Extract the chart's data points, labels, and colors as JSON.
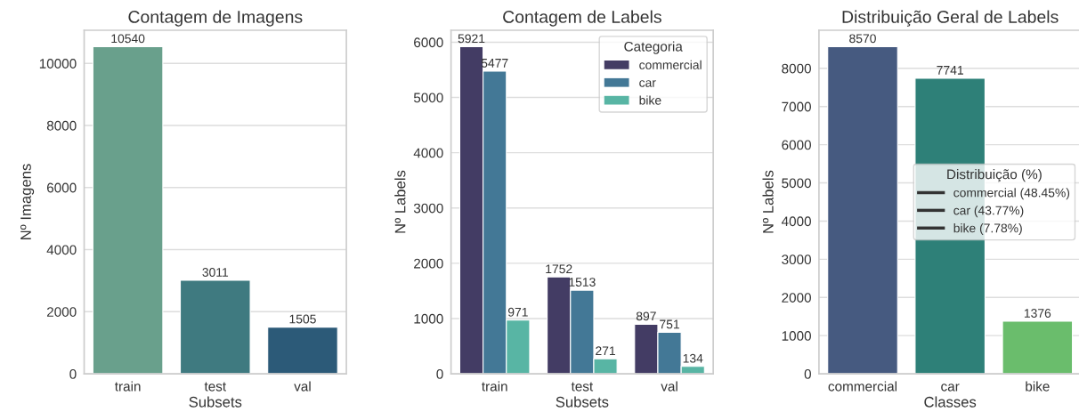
{
  "chart_data": [
    {
      "type": "bar",
      "title": "Contagem de Imagens",
      "xlabel": "Subsets",
      "ylabel": "Nº Imagens",
      "categories": [
        "train",
        "test",
        "val"
      ],
      "values": [
        10540,
        3011,
        1505
      ],
      "colors": [
        "#69a08c",
        "#3f7a80",
        "#2c5a78"
      ],
      "ylim": [
        0,
        11067
      ],
      "yticks": [
        0,
        2000,
        4000,
        6000,
        8000,
        10000
      ],
      "grid": "y",
      "data_labels": true
    },
    {
      "type": "bar",
      "title": "Contagem de Labels",
      "xlabel": "Subsets",
      "ylabel": "Nº Labels",
      "categories": [
        "train",
        "test",
        "val"
      ],
      "legend_title": "Categoria",
      "legend": "top right",
      "series": [
        {
          "name": "commercial",
          "color": "#433c64",
          "values": [
            5921,
            1752,
            897
          ]
        },
        {
          "name": "car",
          "color": "#437896",
          "values": [
            5477,
            1513,
            751
          ]
        },
        {
          "name": "bike",
          "color": "#58b5a4",
          "values": [
            971,
            271,
            134
          ]
        }
      ],
      "ylim": [
        0,
        6217
      ],
      "yticks": [
        0,
        1000,
        2000,
        3000,
        4000,
        5000,
        6000
      ],
      "grid": "y",
      "data_labels": true
    },
    {
      "type": "bar",
      "title": "Distribuição Geral de Labels",
      "xlabel": "Classes",
      "ylabel": "Nº Labels",
      "categories": [
        "commercial",
        "car",
        "bike"
      ],
      "values": [
        8570,
        7741,
        1376
      ],
      "colors": [
        "#465a80",
        "#2e8078",
        "#6abd6c"
      ],
      "ylim": [
        0,
        8998
      ],
      "yticks": [
        0,
        1000,
        2000,
        3000,
        4000,
        5000,
        6000,
        7000,
        8000
      ],
      "grid": "y",
      "data_labels": true,
      "legend_title": "Distribuição (%)",
      "annotations": [
        "commercial (48.45%)",
        "car (43.77%)",
        "bike (7.78%)"
      ]
    }
  ]
}
